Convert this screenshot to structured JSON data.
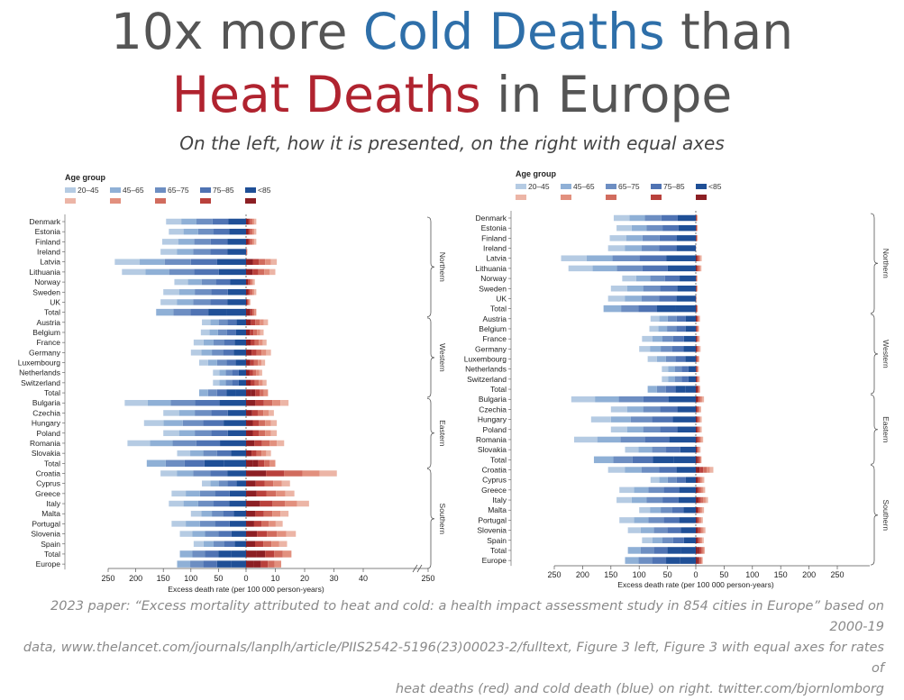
{
  "title": {
    "part1": "10x more ",
    "cold": "Cold Deaths",
    "part2": " than",
    "heat": "Heat Deaths",
    "part3": " in Europe"
  },
  "subtitle": "On the left, how it is presented, on the right with equal axes",
  "footer": {
    "line1": "2023 paper: “Excess mortality attributed to heat and cold: a health impact assessment study in 854 cities in Europe” based on 2000-19",
    "line2": "data, www.thelancet.com/journals/lanplh/article/PIIS2542-5196(23)00023-2/fulltext, Figure 3 left, Figure 3 with equal axes for rates of",
    "line3": "heat deaths (red) and cold death (blue) on right. twitter.com/bjornlomborg"
  },
  "colors": {
    "title_gray": "#555555",
    "cold_title": "#2e6fa9",
    "heat_title": "#b0232f",
    "cold_shades": [
      "#b5cbe3",
      "#8fb0d6",
      "#6d8ec2",
      "#4f73b3",
      "#1f4f96"
    ],
    "heat_shades": [
      "#ecb5a6",
      "#e2907e",
      "#d16c5e",
      "#b9413c",
      "#8c1f24"
    ],
    "bracket": "#555555"
  },
  "chart_data": [
    {
      "type": "bar",
      "title": "",
      "legend_title": "Age group",
      "age_groups": [
        "20–45",
        "45–65",
        "65–75",
        "75–85",
        "<85"
      ],
      "xlabel": "Excess death rate (per 100 000 person-years)",
      "cold_ticks": [
        "250",
        "200",
        "150",
        "100",
        "50",
        "0"
      ],
      "heat_ticks": [
        "10",
        "20",
        "30",
        "40"
      ],
      "heat_break_tick": "250",
      "cold_xlim": [
        250,
        0
      ],
      "heat_xlim": [
        0,
        40
      ],
      "regions": [
        "Northern",
        "Western",
        "Eastern",
        "Southern"
      ],
      "categories": [
        "Denmark",
        "Estonia",
        "Finland",
        "Ireland",
        "Latvia",
        "Lithuania",
        "Norway",
        "Sweden",
        "UK",
        "Total",
        "Austria",
        "Belgium",
        "France",
        "Germany",
        "Luxembourg",
        "Netherlands",
        "Switzerland",
        "Total",
        "Bulgaria",
        "Czechia",
        "Hungary",
        "Poland",
        "Romania",
        "Slovakia",
        "Total",
        "Croatia",
        "Cyprus",
        "Greece",
        "Italy",
        "Malta",
        "Portugal",
        "Slovenia",
        "Spain",
        "Total",
        "Europe"
      ],
      "region_of_row": [
        0,
        0,
        0,
        0,
        0,
        0,
        0,
        0,
        0,
        0,
        1,
        1,
        1,
        1,
        1,
        1,
        1,
        1,
        2,
        2,
        2,
        2,
        2,
        2,
        2,
        3,
        3,
        3,
        3,
        3,
        3,
        3,
        3,
        3,
        3
      ],
      "total_rows": [
        9,
        17,
        24,
        33,
        34
      ],
      "cold_deaths": [
        145,
        140,
        152,
        155,
        238,
        225,
        130,
        150,
        155,
        163,
        80,
        82,
        95,
        100,
        85,
        60,
        60,
        85,
        220,
        150,
        185,
        150,
        215,
        125,
        180,
        155,
        80,
        135,
        140,
        100,
        135,
        120,
        95,
        120,
        125
      ],
      "heat_deaths": [
        3.5,
        3.5,
        3.5,
        0.5,
        10.5,
        10.0,
        3.0,
        3.5,
        1.5,
        3.5,
        7.5,
        6.0,
        7.0,
        8.5,
        6.5,
        5.5,
        7.0,
        7.5,
        14.5,
        9.5,
        10.5,
        10.5,
        13.0,
        8.5,
        10.0,
        31.0,
        15.0,
        16.5,
        21.5,
        14.5,
        12.5,
        17.0,
        14.0,
        15.5,
        12.0
      ]
    },
    {
      "type": "bar",
      "title": "",
      "legend_title": "Age group",
      "age_groups": [
        "20–45",
        "45–65",
        "65–75",
        "75–85",
        "<85"
      ],
      "xlabel": "Excess death rate (per 100 000 person-years)",
      "cold_ticks": [
        "250",
        "200",
        "150",
        "100",
        "50",
        "0"
      ],
      "heat_ticks": [
        "50",
        "100",
        "150",
        "200",
        "250"
      ],
      "cold_xlim": [
        250,
        0
      ],
      "heat_xlim": [
        0,
        250
      ],
      "regions": [
        "Northern",
        "Western",
        "Eastern",
        "Southern"
      ],
      "categories": [
        "Denmark",
        "Estonia",
        "Finland",
        "Ireland",
        "Latvia",
        "Lithuania",
        "Norway",
        "Sweden",
        "UK",
        "Total",
        "Austria",
        "Belgium",
        "France",
        "Germany",
        "Luxembourg",
        "Netherlands",
        "Switzerland",
        "Total",
        "Bulgaria",
        "Czechia",
        "Hungary",
        "Poland",
        "Romania",
        "Slovakia",
        "Total",
        "Croatia",
        "Cyprus",
        "Greece",
        "Italy",
        "Malta",
        "Portugal",
        "Slovenia",
        "Spain",
        "Total",
        "Europe"
      ],
      "region_of_row": [
        0,
        0,
        0,
        0,
        0,
        0,
        0,
        0,
        0,
        0,
        1,
        1,
        1,
        1,
        1,
        1,
        1,
        1,
        2,
        2,
        2,
        2,
        2,
        2,
        2,
        3,
        3,
        3,
        3,
        3,
        3,
        3,
        3,
        3,
        3
      ],
      "total_rows": [
        9,
        17,
        24,
        33,
        34
      ],
      "cold_deaths": [
        145,
        140,
        152,
        155,
        238,
        225,
        130,
        150,
        155,
        163,
        80,
        82,
        95,
        100,
        85,
        60,
        60,
        85,
        220,
        150,
        185,
        150,
        215,
        125,
        180,
        155,
        80,
        135,
        140,
        100,
        135,
        120,
        95,
        120,
        125
      ],
      "heat_deaths": [
        3.5,
        3.5,
        3.5,
        0.5,
        10.5,
        10.0,
        3.0,
        3.5,
        1.5,
        3.5,
        7.5,
        6.0,
        7.0,
        8.5,
        6.5,
        5.5,
        7.0,
        7.5,
        14.5,
        9.5,
        10.5,
        10.5,
        13.0,
        8.5,
        10.0,
        31.0,
        15.0,
        16.5,
        21.5,
        14.5,
        12.5,
        17.0,
        14.0,
        15.5,
        12.0
      ]
    }
  ]
}
